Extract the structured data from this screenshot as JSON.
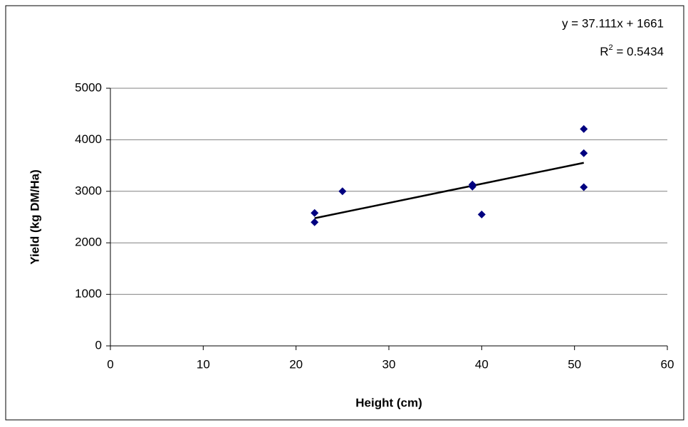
{
  "chart_data": {
    "type": "scatter",
    "x_label": "Height (cm)",
    "y_label": "Yield (kg DM/Ha)",
    "x": [
      22,
      22,
      25,
      39,
      39,
      40,
      51,
      51,
      51
    ],
    "values": [
      2400,
      2580,
      3000,
      3130,
      3090,
      2550,
      4210,
      3740,
      3080
    ],
    "color": "#000080",
    "xlim": [
      0,
      60
    ],
    "xticks": [
      0,
      10,
      20,
      30,
      40,
      50,
      60
    ],
    "ylim": [
      0,
      5000
    ],
    "yticks": [
      0,
      1000,
      2000,
      3000,
      4000,
      5000
    ],
    "grid": true,
    "trendline": {
      "equation": "y = 37.111x + 1661",
      "slope": 37.111,
      "intercept": 1661,
      "r_squared_label": "R",
      "r_squared_sup": "2",
      "r_squared_text": " = 0.5434",
      "color": "#000000"
    }
  }
}
